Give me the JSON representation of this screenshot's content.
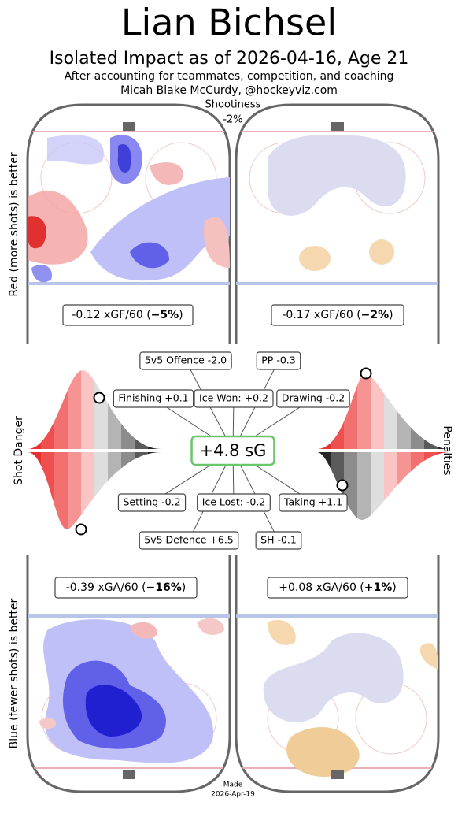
{
  "header": {
    "title": "Lian Bichsel",
    "subtitle": "Isolated Impact as of 2026-04-16, Age 21",
    "note": "After accounting for teammates, competition, and coaching",
    "author": "Micah Blake McCurdy, @hockeyviz.com",
    "shootiness_label": "Shootiness",
    "shootiness_value": "-2%"
  },
  "side_labels": {
    "top": "Red (more shots) is better",
    "bottom": "Blue (fewer shots) is better",
    "left": "Shot Danger",
    "right": "Penalties"
  },
  "rinks": [
    {
      "text": "-0.12 xGF/60 (",
      "bold": "−5%",
      "close": ")"
    },
    {
      "text": "-0.17 xGF/60 (",
      "bold": "−2%",
      "close": ")"
    },
    {
      "text": "-0.39 xGA/60 (",
      "bold": "−16%",
      "close": ")"
    },
    {
      "text": "+0.08 xGA/60 (",
      "bold": "+1%",
      "close": ")"
    }
  ],
  "components": {
    "total": "+4.8 sG",
    "items": [
      "5v5 Offence -2.0",
      "PP -0.3",
      "Finishing +0.1",
      "Ice Won: +0.2",
      "Drawing -0.2",
      "Setting -0.2",
      "Ice Lost: -0.2",
      "Taking +1.1",
      "5v5 Defence +6.5",
      "SH -0.1"
    ]
  },
  "footer": {
    "made": "Made",
    "date": "2026-Apr-19"
  }
}
